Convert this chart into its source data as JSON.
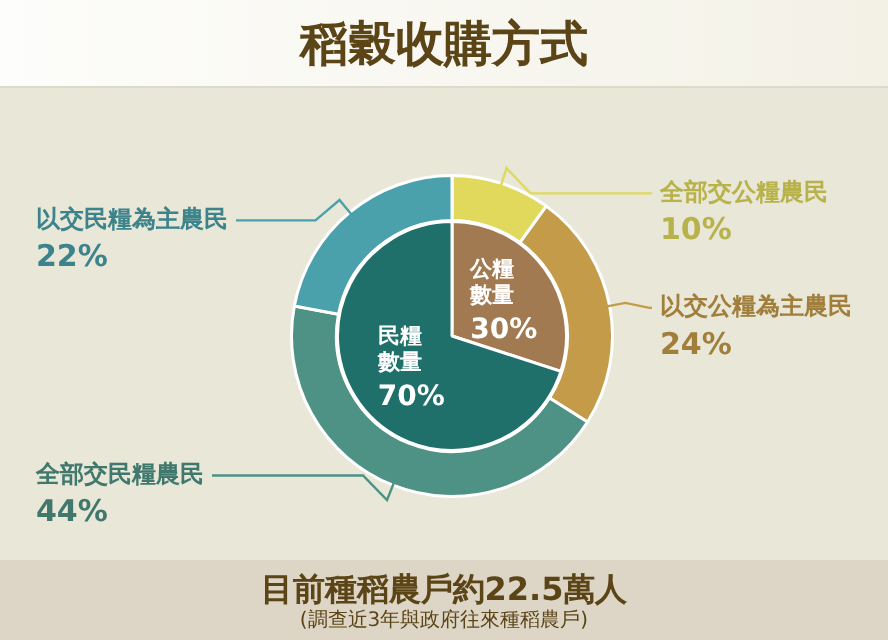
{
  "chart_data": [
    {
      "type": "donut",
      "title": "稻穀收購方式",
      "categories": [
        "全部交公糧農民",
        "以交公糧為主農民",
        "全部交民糧農民",
        "以交民糧為主農民"
      ],
      "values": [
        10,
        24,
        44,
        22
      ],
      "value_labels": [
        "10%",
        "24%",
        "44%",
        "22%"
      ],
      "colors": [
        "#e0d95c",
        "#c49b48",
        "#4e9286",
        "#4aa0ab"
      ],
      "annotations": [
        "目前種稻農戶約22.5萬人",
        "(調查近3年與政府往來種稻農戶)"
      ]
    },
    {
      "type": "pie",
      "categories": [
        "公糧數量",
        "民糧數量"
      ],
      "values": [
        30,
        70
      ],
      "value_labels": [
        "30%",
        "70%"
      ],
      "colors": [
        "#a27a52",
        "#1f6f6b"
      ]
    }
  ]
}
